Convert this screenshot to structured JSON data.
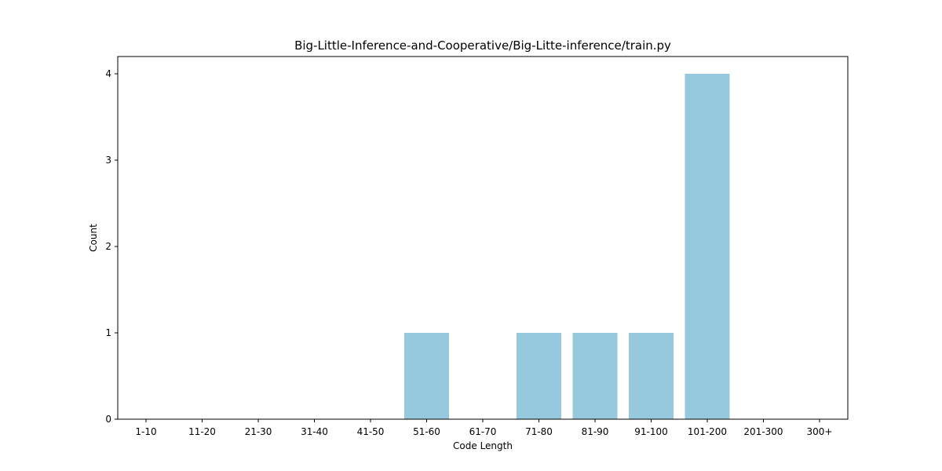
{
  "chart_data": {
    "type": "bar",
    "title": "Big-Little-Inference-and-Cooperative/Big-Litte-inference/train.py",
    "xlabel": "Code Length",
    "ylabel": "Count",
    "categories": [
      "1-10",
      "11-20",
      "21-30",
      "31-40",
      "41-50",
      "51-60",
      "61-70",
      "71-80",
      "81-90",
      "91-100",
      "101-200",
      "201-300",
      "300+"
    ],
    "values": [
      0,
      0,
      0,
      0,
      0,
      1,
      0,
      1,
      1,
      1,
      4,
      0,
      0
    ],
    "yticks": [
      0,
      1,
      2,
      3,
      4
    ],
    "ylim": [
      0,
      4.2
    ],
    "bar_color": "#96c9dd",
    "grid": false,
    "legend": "none"
  }
}
